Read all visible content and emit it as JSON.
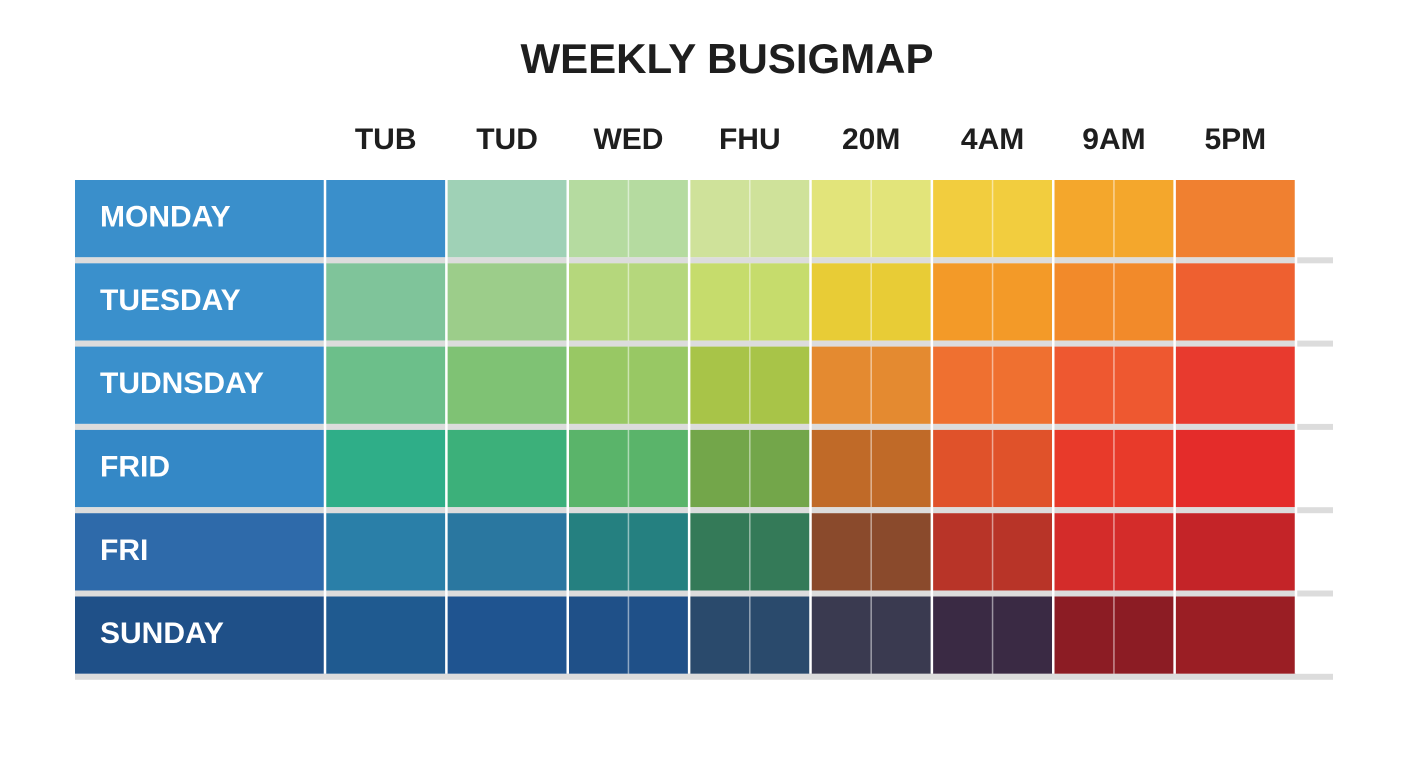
{
  "chart_data": {
    "type": "heatmap",
    "title": "WEEKLY BUSIGMAP",
    "categories": [
      "TUB",
      "TUD",
      "WED",
      "FHU",
      "20M",
      "4AM",
      "9AM",
      "5PM"
    ],
    "rows": [
      "MONDAY",
      "TUESDAY",
      "TUDNSDAY",
      "FRID",
      "FRI",
      "SUNDAY"
    ],
    "row_colors": [
      "#3a8fcb",
      "#3a90cc",
      "#3a90cc",
      "#3488c6",
      "#2e6aaa",
      "#1f5088"
    ],
    "cell_colors": [
      [
        "#3a8fcb",
        "#9fd1b6",
        "#b5dba0",
        "#cfe29a",
        "#e2e47a",
        "#f2cd3e",
        "#f4a72c",
        "#f08030"
      ],
      [
        "#7fc49a",
        "#9ccd8a",
        "#b5d77c",
        "#c6dc6c",
        "#e8cc36",
        "#f39a28",
        "#f28a2a",
        "#ee6030"
      ],
      [
        "#6cbf8a",
        "#7fc274",
        "#98c864",
        "#a8c448",
        "#e48a30",
        "#ef7030",
        "#ee5830",
        "#e83a2e"
      ],
      [
        "#2fae88",
        "#3cb07a",
        "#5ab46a",
        "#73a64a",
        "#c06a28",
        "#e0522a",
        "#e83a2a",
        "#e42c2a"
      ],
      [
        "#2a7fa8",
        "#2a77a0",
        "#258080",
        "#347a58",
        "#8a4a2c",
        "#b83428",
        "#d42c2a",
        "#c42428"
      ],
      [
        "#1f5a90",
        "#1f5490",
        "#1f5088",
        "#2a4a6c",
        "#3a3a50",
        "#3a2a44",
        "#8c1c24",
        "#9a1e24"
      ]
    ]
  }
}
